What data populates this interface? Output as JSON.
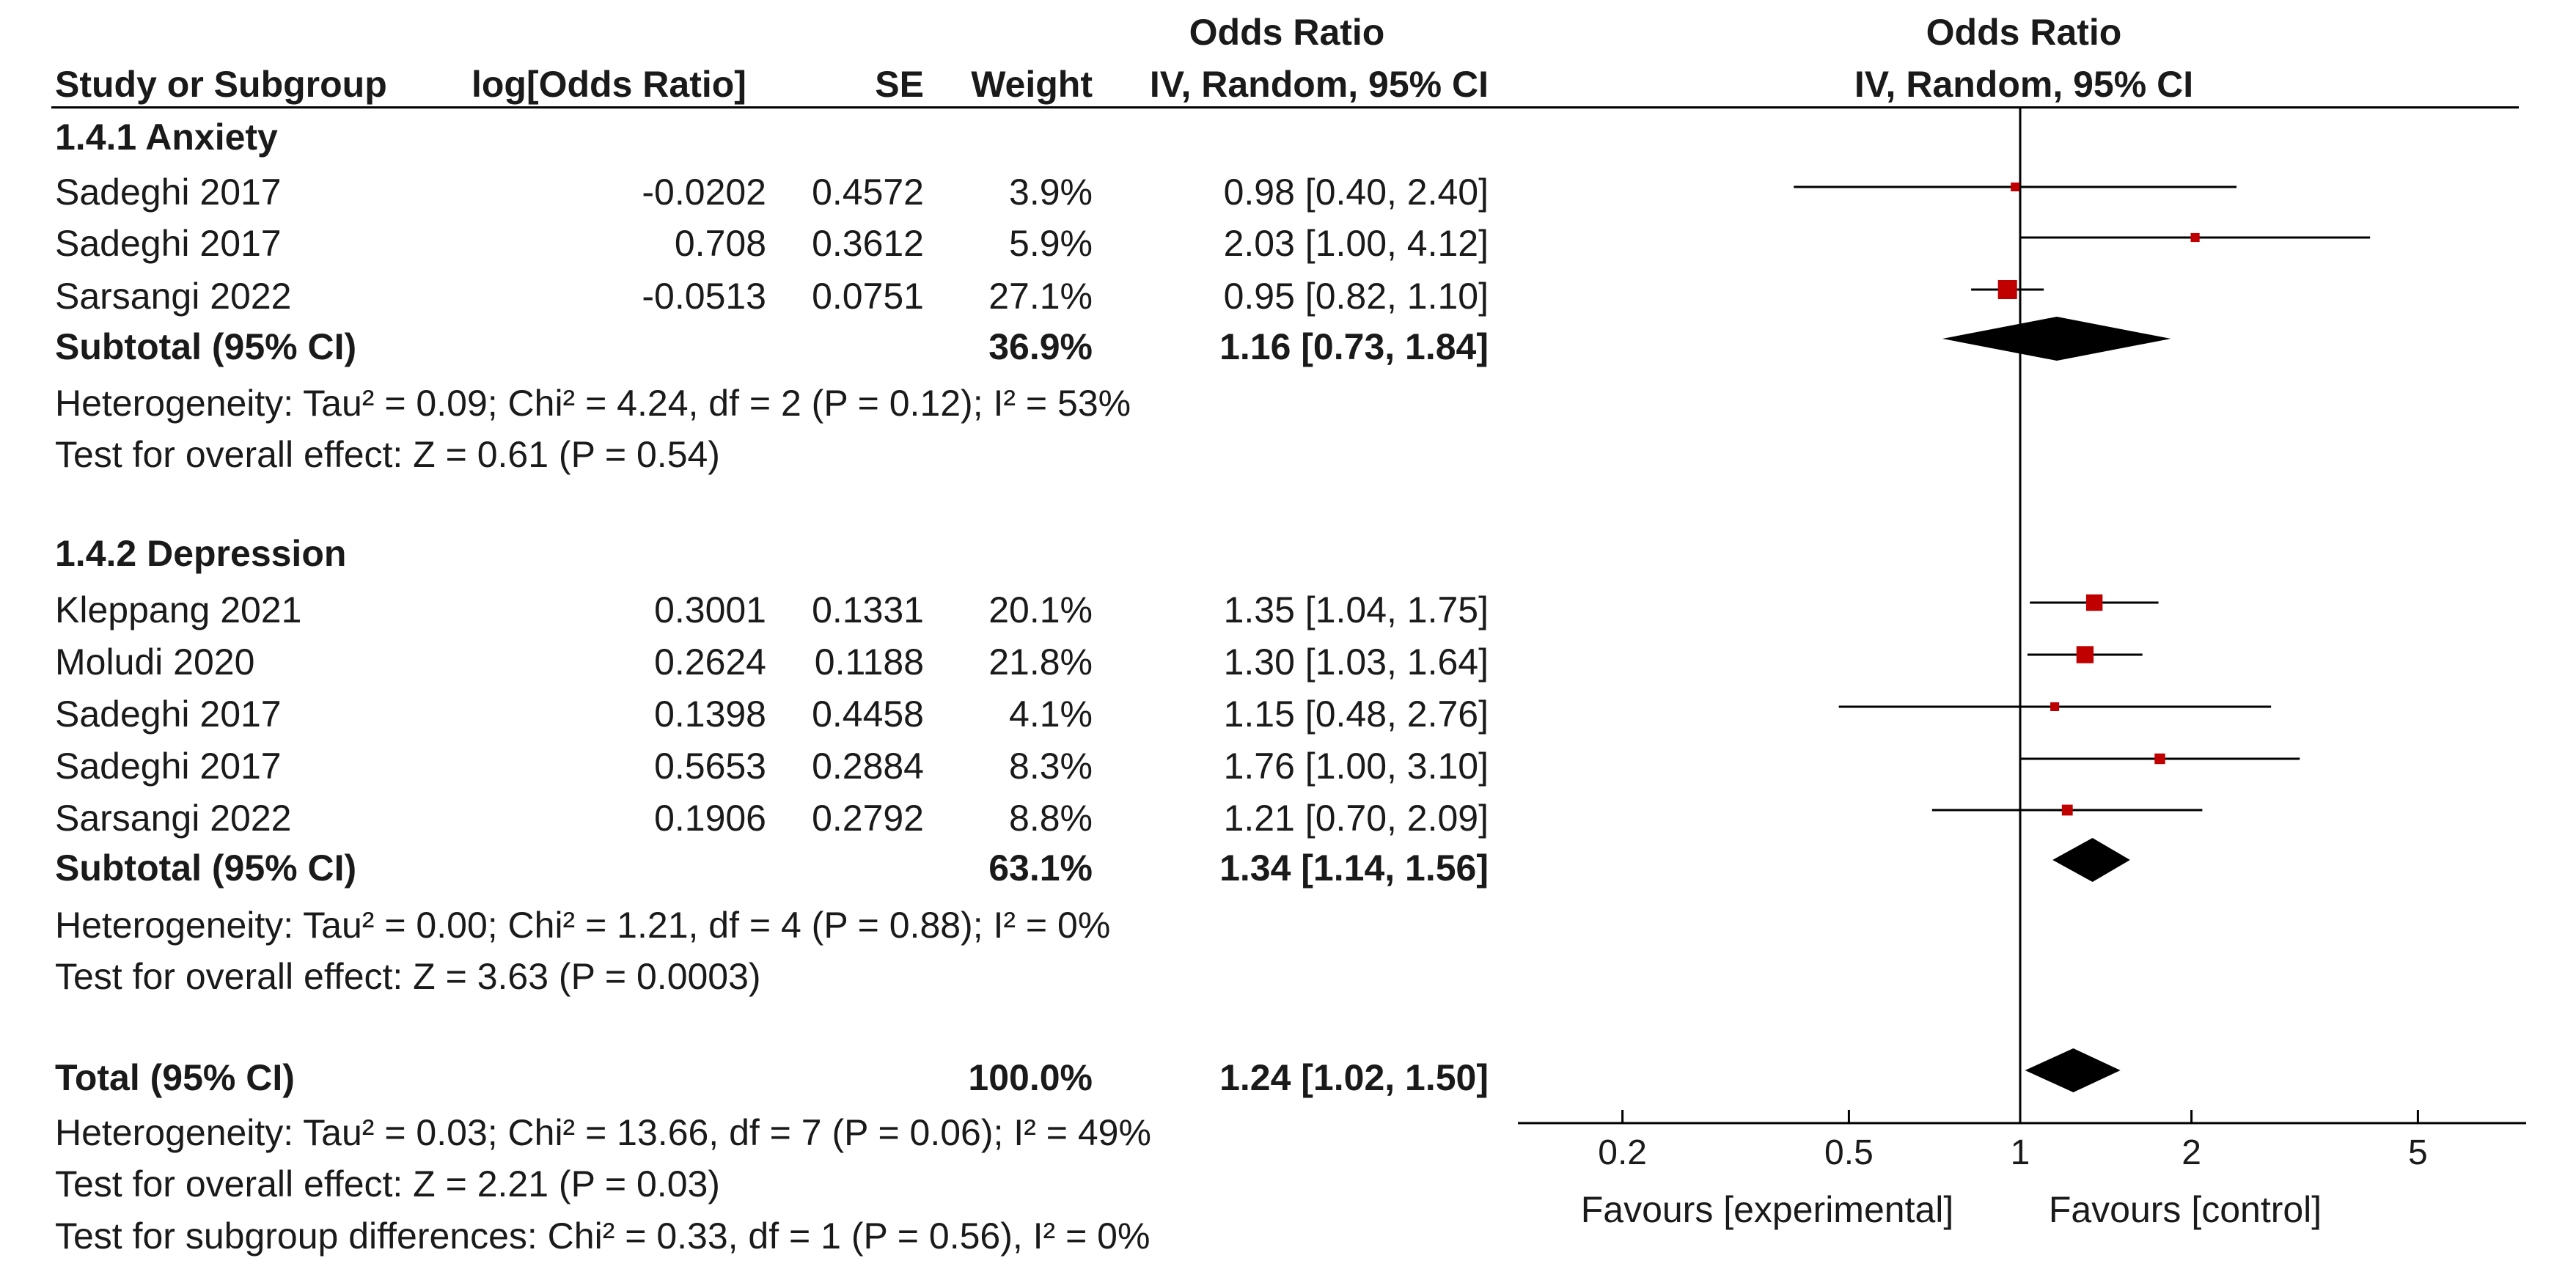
{
  "headers": {
    "study": "Study or Subgroup",
    "log_or": "log[Odds Ratio]",
    "se": "SE",
    "weight": "Weight",
    "or_top": "Odds Ratio",
    "or_bottom": "IV, Random, 95% CI",
    "plot_top": "Odds Ratio",
    "plot_bottom": "IV, Random, 95% CI"
  },
  "groups": [
    {
      "title": "1.4.1 Anxiety",
      "studies": [
        {
          "name": "Sadeghi 2017",
          "log_or": "-0.0202",
          "se": "0.4572",
          "weight": "3.9%",
          "ci_text": "0.98 [0.40, 2.40]",
          "or": 0.98,
          "lo": 0.4,
          "hi": 2.4,
          "w": 3.9
        },
        {
          "name": "Sadeghi 2017",
          "log_or": "0.708",
          "se": "0.3612",
          "weight": "5.9%",
          "ci_text": "2.03 [1.00, 4.12]",
          "or": 2.03,
          "lo": 1.0,
          "hi": 4.12,
          "w": 5.9
        },
        {
          "name": "Sarsangi 2022",
          "log_or": "-0.0513",
          "se": "0.0751",
          "weight": "27.1%",
          "ci_text": "0.95 [0.82, 1.10]",
          "or": 0.95,
          "lo": 0.82,
          "hi": 1.1,
          "w": 27.1
        }
      ],
      "subtotal": {
        "label": "Subtotal (95% CI)",
        "weight": "36.9%",
        "ci_text": "1.16 [0.73, 1.84]",
        "or": 1.16,
        "lo": 0.73,
        "hi": 1.84
      },
      "heterogeneity": "Heterogeneity: Tau² = 0.09; Chi² = 4.24, df = 2 (P = 0.12); I² = 53%",
      "overall": "Test for overall effect: Z = 0.61 (P = 0.54)"
    },
    {
      "title": "1.4.2 Depression",
      "studies": [
        {
          "name": "Kleppang 2021",
          "log_or": "0.3001",
          "se": "0.1331",
          "weight": "20.1%",
          "ci_text": "1.35 [1.04, 1.75]",
          "or": 1.35,
          "lo": 1.04,
          "hi": 1.75,
          "w": 20.1
        },
        {
          "name": "Moludi 2020",
          "log_or": "0.2624",
          "se": "0.1188",
          "weight": "21.8%",
          "ci_text": "1.30 [1.03, 1.64]",
          "or": 1.3,
          "lo": 1.03,
          "hi": 1.64,
          "w": 21.8
        },
        {
          "name": "Sadeghi 2017",
          "log_or": "0.1398",
          "se": "0.4458",
          "weight": "4.1%",
          "ci_text": "1.15 [0.48, 2.76]",
          "or": 1.15,
          "lo": 0.48,
          "hi": 2.76,
          "w": 4.1
        },
        {
          "name": "Sadeghi 2017",
          "log_or": "0.5653",
          "se": "0.2884",
          "weight": "8.3%",
          "ci_text": "1.76 [1.00, 3.10]",
          "or": 1.76,
          "lo": 1.0,
          "hi": 3.1,
          "w": 8.3
        },
        {
          "name": "Sarsangi 2022",
          "log_or": "0.1906",
          "se": "0.2792",
          "weight": "8.8%",
          "ci_text": "1.21 [0.70, 2.09]",
          "or": 1.21,
          "lo": 0.7,
          "hi": 2.09,
          "w": 8.8
        }
      ],
      "subtotal": {
        "label": "Subtotal (95% CI)",
        "weight": "63.1%",
        "ci_text": "1.34 [1.14, 1.56]",
        "or": 1.34,
        "lo": 1.14,
        "hi": 1.56
      },
      "heterogeneity": "Heterogeneity: Tau² = 0.00; Chi² = 1.21, df = 4 (P = 0.88); I² = 0%",
      "overall": "Test for overall effect: Z = 3.63 (P = 0.0003)"
    }
  ],
  "total": {
    "label": "Total (95% CI)",
    "weight": "100.0%",
    "ci_text": "1.24 [1.02, 1.50]",
    "or": 1.24,
    "lo": 1.02,
    "hi": 1.5
  },
  "footer": {
    "heterogeneity": "Heterogeneity: Tau² = 0.03; Chi² = 13.66, df = 7 (P = 0.06); I² = 49%",
    "overall": "Test for overall effect: Z = 2.21 (P = 0.03)",
    "subgroup": "Test for subgroup differences: Chi² = 0.33, df = 1 (P = 0.56), I² = 0%"
  },
  "axis": {
    "ticks": [
      0.2,
      0.5,
      1,
      2,
      5
    ],
    "tick_labels": [
      "0.2",
      "0.5",
      "1",
      "2",
      "5"
    ],
    "favours_left": "Favours [experimental]",
    "favours_right": "Favours [control]"
  },
  "colors": {
    "marker": "#c00000",
    "diamond": "#000000",
    "line": "#000000"
  },
  "chart_data": {
    "type": "forest",
    "scale": "log",
    "xlim": [
      0.2,
      5
    ],
    "ticks": [
      0.2,
      0.5,
      1,
      2,
      5
    ],
    "null_value": 1,
    "points": [
      {
        "label": "Sadeghi 2017",
        "or": 0.98,
        "lo": 0.4,
        "hi": 2.4
      },
      {
        "label": "Sadeghi 2017",
        "or": 2.03,
        "lo": 1.0,
        "hi": 4.12
      },
      {
        "label": "Sarsangi 2022",
        "or": 0.95,
        "lo": 0.82,
        "hi": 1.1
      },
      {
        "label": "Kleppang 2021",
        "or": 1.35,
        "lo": 1.04,
        "hi": 1.75
      },
      {
        "label": "Moludi 2020",
        "or": 1.3,
        "lo": 1.03,
        "hi": 1.64
      },
      {
        "label": "Sadeghi 2017",
        "or": 1.15,
        "lo": 0.48,
        "hi": 2.76
      },
      {
        "label": "Sadeghi 2017",
        "or": 1.76,
        "lo": 1.0,
        "hi": 3.1
      },
      {
        "label": "Sarsangi 2022",
        "or": 1.21,
        "lo": 0.7,
        "hi": 2.09
      }
    ],
    "summaries": [
      {
        "label": "Subtotal (95% CI)",
        "or": 1.16,
        "lo": 0.73,
        "hi": 1.84
      },
      {
        "label": "Subtotal (95% CI)",
        "or": 1.34,
        "lo": 1.14,
        "hi": 1.56
      },
      {
        "label": "Total (95% CI)",
        "or": 1.24,
        "lo": 1.02,
        "hi": 1.5
      }
    ]
  }
}
